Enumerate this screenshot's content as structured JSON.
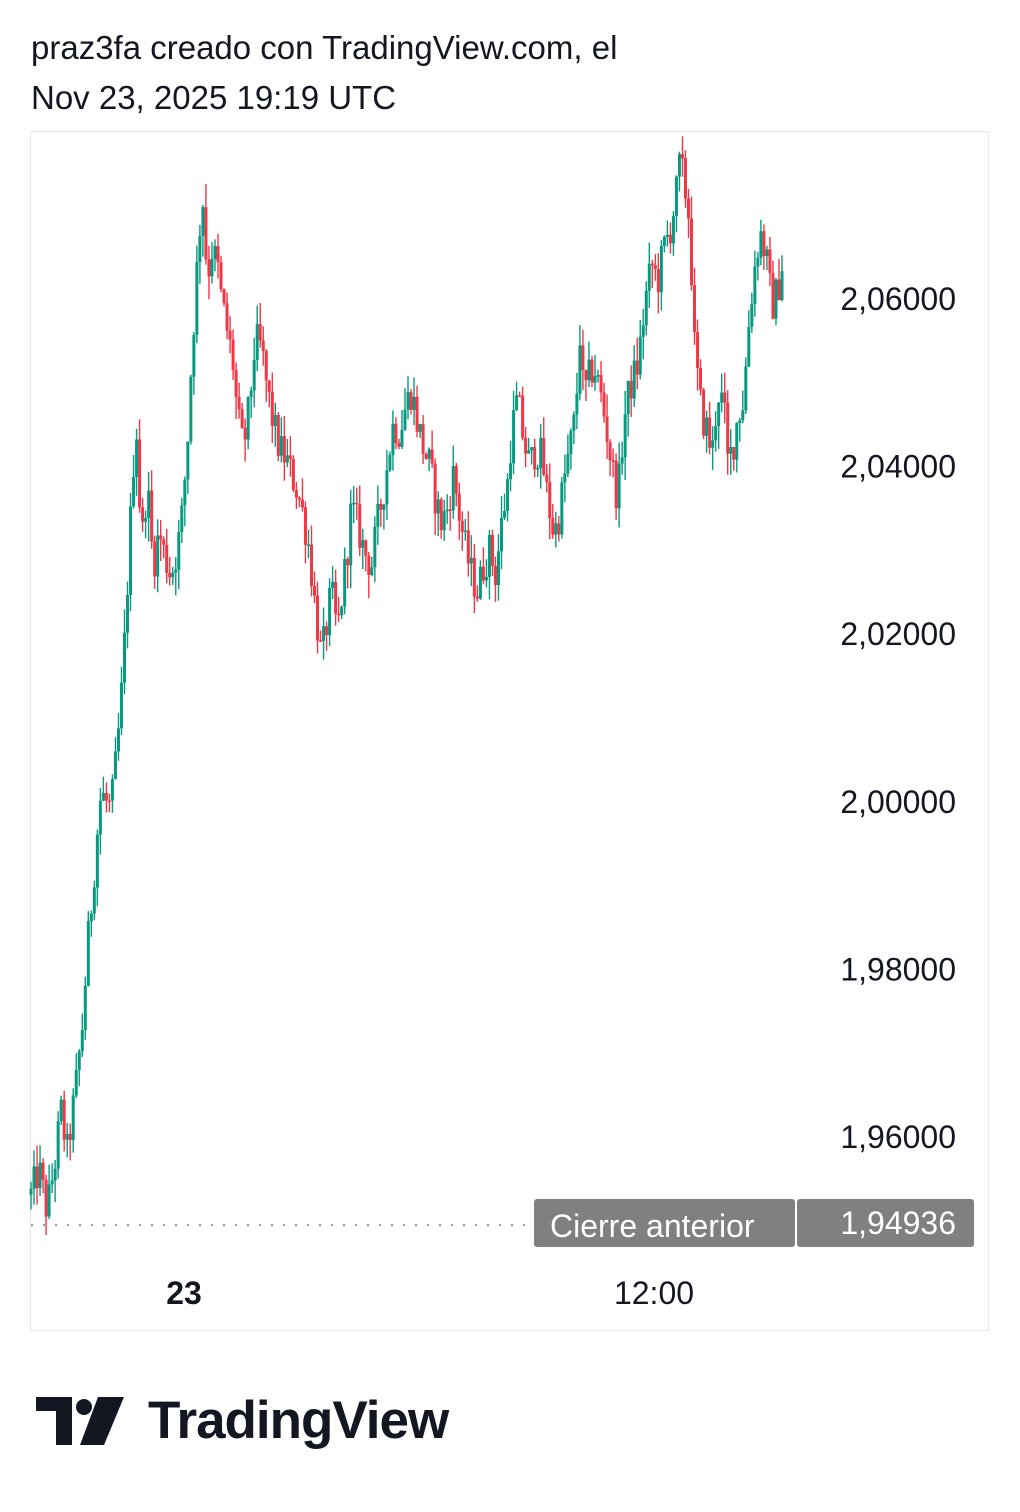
{
  "header": {
    "line1": "praz3fa creado con TradingView.com, el",
    "line2": "Nov 23, 2025 19:19 UTC"
  },
  "chart_data": {
    "type": "candlestick",
    "y_ticks": [
      "2,06000",
      "2,04000",
      "2,02000",
      "2,00000",
      "1,98000",
      "1,96000"
    ],
    "y_tick_values": [
      2.06,
      2.04,
      2.02,
      2.0,
      1.98,
      1.96
    ],
    "x_ticks": [
      "23",
      "12:00"
    ],
    "ylim": [
      1.94936,
      2.078
    ],
    "previous_close": {
      "label": "Cierre anterior",
      "value_text": "1,94936",
      "value": 1.94936
    },
    "colors": {
      "up": "#089981",
      "down": "#f23645",
      "previous_close_line": "#9598a1",
      "badge": "#808080"
    },
    "close_path": [
      [
        0,
        1.953
      ],
      [
        8,
        1.956
      ],
      [
        16,
        1.951
      ],
      [
        24,
        1.957
      ],
      [
        30,
        1.963
      ],
      [
        36,
        1.958
      ],
      [
        44,
        1.965
      ],
      [
        52,
        1.974
      ],
      [
        56,
        1.982
      ],
      [
        62,
        1.99
      ],
      [
        66,
        1.996
      ],
      [
        70,
        2.001
      ],
      [
        74,
        2.0
      ],
      [
        80,
        1.999
      ],
      [
        86,
        2.006
      ],
      [
        90,
        2.012
      ],
      [
        94,
        2.02
      ],
      [
        98,
        2.03
      ],
      [
        102,
        2.04
      ],
      [
        106,
        2.045
      ],
      [
        110,
        2.03
      ],
      [
        116,
        2.038
      ],
      [
        122,
        2.028
      ],
      [
        128,
        2.032
      ],
      [
        134,
        2.029
      ],
      [
        140,
        2.027
      ],
      [
        146,
        2.03
      ],
      [
        150,
        2.033
      ],
      [
        156,
        2.042
      ],
      [
        160,
        2.052
      ],
      [
        164,
        2.06
      ],
      [
        168,
        2.068
      ],
      [
        172,
        2.072
      ],
      [
        176,
        2.062
      ],
      [
        180,
        2.066
      ],
      [
        186,
        2.064
      ],
      [
        190,
        2.06
      ],
      [
        196,
        2.056
      ],
      [
        202,
        2.052
      ],
      [
        206,
        2.046
      ],
      [
        212,
        2.042
      ],
      [
        218,
        2.047
      ],
      [
        224,
        2.055
      ],
      [
        230,
        2.054
      ],
      [
        236,
        2.049
      ],
      [
        242,
        2.045
      ],
      [
        248,
        2.042
      ],
      [
        254,
        2.041
      ],
      [
        260,
        2.039
      ],
      [
        266,
        2.037
      ],
      [
        272,
        2.034
      ],
      [
        278,
        2.03
      ],
      [
        282,
        2.025
      ],
      [
        286,
        2.021
      ],
      [
        290,
        2.017
      ],
      [
        294,
        2.02
      ],
      [
        300,
        2.025
      ],
      [
        306,
        2.02
      ],
      [
        310,
        2.024
      ],
      [
        316,
        2.03
      ],
      [
        320,
        2.035
      ],
      [
        326,
        2.033
      ],
      [
        332,
        2.03
      ],
      [
        340,
        2.028
      ],
      [
        346,
        2.033
      ],
      [
        352,
        2.037
      ],
      [
        358,
        2.042
      ],
      [
        362,
        2.045
      ],
      [
        368,
        2.044
      ],
      [
        374,
        2.047
      ],
      [
        380,
        2.049
      ],
      [
        386,
        2.045
      ],
      [
        392,
        2.042
      ],
      [
        398,
        2.04
      ],
      [
        404,
        2.036
      ],
      [
        410,
        2.033
      ],
      [
        416,
        2.035
      ],
      [
        422,
        2.039
      ],
      [
        428,
        2.034
      ],
      [
        434,
        2.03
      ],
      [
        440,
        2.027
      ],
      [
        446,
        2.025
      ],
      [
        452,
        2.028
      ],
      [
        458,
        2.03
      ],
      [
        464,
        2.027
      ],
      [
        470,
        2.033
      ],
      [
        476,
        2.038
      ],
      [
        480,
        2.044
      ],
      [
        486,
        2.048
      ],
      [
        492,
        2.043
      ],
      [
        498,
        2.04
      ],
      [
        504,
        2.042
      ],
      [
        510,
        2.041
      ],
      [
        516,
        2.036
      ],
      [
        522,
        2.032
      ],
      [
        526,
        2.033
      ],
      [
        532,
        2.038
      ],
      [
        538,
        2.042
      ],
      [
        544,
        2.046
      ],
      [
        548,
        2.056
      ],
      [
        552,
        2.048
      ],
      [
        556,
        2.05
      ],
      [
        562,
        2.052
      ],
      [
        568,
        2.049
      ],
      [
        574,
        2.045
      ],
      [
        580,
        2.04
      ],
      [
        586,
        2.036
      ],
      [
        590,
        2.042
      ],
      [
        594,
        2.047
      ],
      [
        600,
        2.05
      ],
      [
        606,
        2.052
      ],
      [
        610,
        2.056
      ],
      [
        614,
        2.06
      ],
      [
        620,
        2.064
      ],
      [
        626,
        2.062
      ],
      [
        632,
        2.066
      ],
      [
        638,
        2.068
      ],
      [
        644,
        2.072
      ],
      [
        648,
        2.076
      ],
      [
        652,
        2.074
      ],
      [
        658,
        2.069
      ],
      [
        662,
        2.055
      ],
      [
        666,
        2.05
      ],
      [
        670,
        2.046
      ],
      [
        676,
        2.044
      ],
      [
        680,
        2.041
      ],
      [
        686,
        2.049
      ],
      [
        692,
        2.047
      ],
      [
        696,
        2.04
      ],
      [
        702,
        2.043
      ],
      [
        706,
        2.046
      ],
      [
        712,
        2.048
      ],
      [
        716,
        2.056
      ],
      [
        722,
        2.063
      ],
      [
        728,
        2.068
      ],
      [
        734,
        2.065
      ],
      [
        740,
        2.059
      ],
      [
        746,
        2.061
      ],
      [
        750,
        2.064
      ]
    ]
  },
  "brand": {
    "name": "TradingView"
  }
}
